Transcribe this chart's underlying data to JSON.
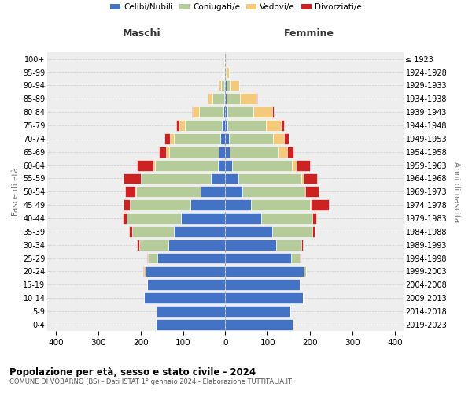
{
  "age_groups": [
    "0-4",
    "5-9",
    "10-14",
    "15-19",
    "20-24",
    "25-29",
    "30-34",
    "35-39",
    "40-44",
    "45-49",
    "50-54",
    "55-59",
    "60-64",
    "65-69",
    "70-74",
    "75-79",
    "80-84",
    "85-89",
    "90-94",
    "95-99",
    "100+"
  ],
  "birth_years": [
    "2019-2023",
    "2014-2018",
    "2009-2013",
    "2004-2008",
    "1999-2003",
    "1994-1998",
    "1989-1993",
    "1984-1988",
    "1979-1983",
    "1974-1978",
    "1969-1973",
    "1964-1968",
    "1959-1963",
    "1954-1958",
    "1949-1953",
    "1944-1948",
    "1939-1943",
    "1934-1938",
    "1929-1933",
    "1924-1928",
    "≤ 1923"
  ],
  "maschi": {
    "celibi": [
      165,
      163,
      192,
      185,
      188,
      160,
      135,
      122,
      105,
      82,
      58,
      35,
      18,
      15,
      12,
      8,
      5,
      3,
      2,
      1,
      1
    ],
    "coniugati": [
      0,
      0,
      0,
      0,
      5,
      22,
      68,
      98,
      128,
      143,
      152,
      162,
      148,
      118,
      110,
      88,
      58,
      28,
      8,
      2,
      1
    ],
    "vedovi": [
      0,
      0,
      0,
      0,
      0,
      0,
      0,
      0,
      0,
      1,
      2,
      3,
      4,
      8,
      9,
      12,
      14,
      10,
      5,
      1,
      0
    ],
    "divorziati": [
      0,
      0,
      0,
      0,
      1,
      3,
      5,
      8,
      10,
      15,
      25,
      40,
      38,
      15,
      12,
      8,
      2,
      1,
      0,
      0,
      0
    ]
  },
  "femmine": {
    "nubili": [
      158,
      153,
      183,
      175,
      185,
      155,
      120,
      110,
      85,
      60,
      40,
      30,
      16,
      10,
      8,
      5,
      4,
      3,
      2,
      1,
      1
    ],
    "coniugate": [
      0,
      0,
      0,
      0,
      5,
      20,
      60,
      95,
      120,
      140,
      145,
      150,
      140,
      115,
      105,
      90,
      62,
      32,
      10,
      2,
      1
    ],
    "vedove": [
      0,
      0,
      0,
      0,
      0,
      0,
      0,
      0,
      0,
      2,
      3,
      5,
      12,
      20,
      25,
      35,
      45,
      38,
      20,
      5,
      1
    ],
    "divorziate": [
      0,
      0,
      0,
      0,
      1,
      2,
      3,
      5,
      10,
      42,
      32,
      32,
      32,
      15,
      12,
      8,
      3,
      2,
      1,
      0,
      0
    ]
  },
  "colors": {
    "celibi_nubili": "#4472C4",
    "coniugati": "#B5CB9A",
    "vedovi": "#F5C97A",
    "divorziati": "#CC2222"
  },
  "xlim": 420,
  "title": "Popolazione per età, sesso e stato civile - 2024",
  "subtitle": "COMUNE DI VOBARNO (BS) - Dati ISTAT 1° gennaio 2024 - Elaborazione TUTTITALIA.IT",
  "ylabel_left": "Fasce di età",
  "ylabel_right": "Anni di nascita",
  "xlabel_left": "Maschi",
  "xlabel_right": "Femmine",
  "bg_color": "#eeeeee",
  "grid_color": "#cccccc"
}
